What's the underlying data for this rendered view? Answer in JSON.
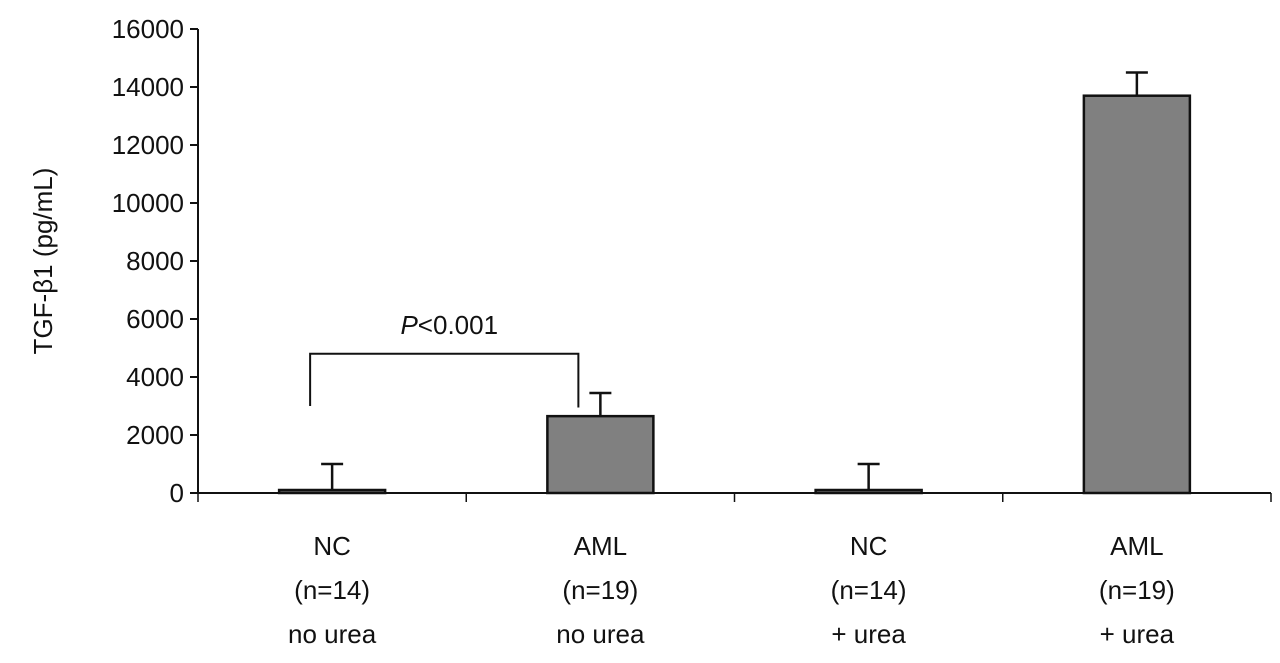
{
  "chart_data": {
    "type": "bar",
    "ylabel": "TGF-β1 (pg/mL)",
    "ylim": [
      0,
      16000
    ],
    "yticks": [
      0,
      2000,
      4000,
      6000,
      8000,
      10000,
      12000,
      14000,
      16000
    ],
    "grid": false,
    "categories": [
      [
        "NC",
        "(n=14)",
        "no urea"
      ],
      [
        "AML",
        "(n=19)",
        "no urea"
      ],
      [
        "NC",
        "(n=14)",
        "+ urea"
      ],
      [
        "AML",
        "(n=19)",
        "+ urea"
      ]
    ],
    "values": [
      100,
      2650,
      100,
      13700
    ],
    "error_upper": [
      900,
      800,
      900,
      800
    ],
    "bar_color": "#808080",
    "annotations": [
      {
        "text_italic": "P",
        "text": "<0.001",
        "bracket_from": 0,
        "bracket_to": 1,
        "bracket_y": 4800
      }
    ]
  }
}
